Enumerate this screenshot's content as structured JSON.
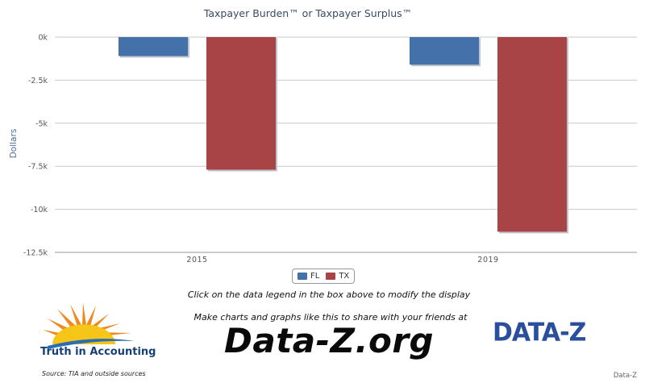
{
  "chart_data": {
    "type": "bar",
    "title": "Taxpayer Burden™ or Taxpayer Surplus™",
    "xlabel": "",
    "ylabel": "Dollars",
    "categories": [
      "2015",
      "2019"
    ],
    "series": [
      {
        "name": "FL",
        "color": "#4471aa",
        "values": [
          -1100,
          -1600
        ]
      },
      {
        "name": "TX",
        "color": "#a84445",
        "values": [
          -7700,
          -11300
        ]
      }
    ],
    "ylim": [
      -12500,
      0
    ],
    "yticks": [
      0,
      -2500,
      -5000,
      -7500,
      -10000,
      -12500
    ],
    "ytick_labels": [
      "0k",
      "-2.5k",
      "-5k",
      "-7.5k",
      "-10k",
      "-12.5k"
    ],
    "grid": true,
    "legend_position": "bottom-center"
  },
  "legend_hint": "Click on the data legend in the box above to modify the display",
  "promo_text": "Make charts and graphs like this to share with your friends at",
  "promo_url": "Data-Z.org",
  "tia_logo_text": "Truth in Accounting",
  "source_text": "Source: TIA and outside sources",
  "dz_logo_text": "DATA-Z",
  "credit_text": "Data-Z"
}
